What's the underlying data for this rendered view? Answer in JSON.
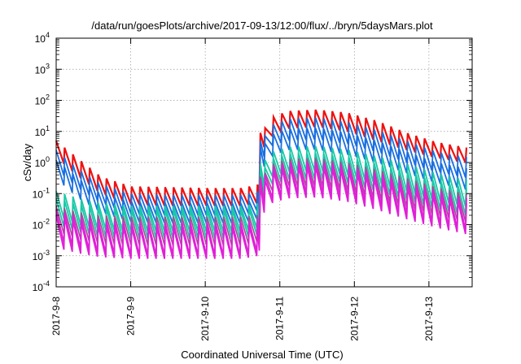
{
  "chart_data": {
    "type": "line",
    "title": "/data/run/goesPlots/archive/2017-09-13/12:00/flux/../bryn/5daysMars.plot",
    "xlabel": "Coordinated Universal Time (UTC)",
    "ylabel": "cSv/day",
    "yscale": "log",
    "ylim": [
      0.0001,
      10000
    ],
    "xlim": [
      0,
      5.58
    ],
    "y_ticks": [
      {
        "base": "10",
        "exp": "-4",
        "value": 0.0001
      },
      {
        "base": "10",
        "exp": "-3",
        "value": 0.001
      },
      {
        "base": "10",
        "exp": "-2",
        "value": 0.01
      },
      {
        "base": "10",
        "exp": "-1",
        "value": 0.1
      },
      {
        "base": "10",
        "exp": "0",
        "value": 1
      },
      {
        "base": "10",
        "exp": "1",
        "value": 10
      },
      {
        "base": "10",
        "exp": "2",
        "value": 100
      },
      {
        "base": "10",
        "exp": "3",
        "value": 1000
      },
      {
        "base": "10",
        "exp": "4",
        "value": 10000
      }
    ],
    "x_ticks": [
      {
        "label": "2017-9-8",
        "value": 0
      },
      {
        "label": "2017-9-9",
        "value": 1
      },
      {
        "label": "2017-9-10",
        "value": 2
      },
      {
        "label": "2017-9-11",
        "value": 3
      },
      {
        "label": "2017-9-12",
        "value": 4
      },
      {
        "label": "2017-9-13",
        "value": 5
      }
    ],
    "grid": true,
    "legend": "none",
    "oscillation_period_days": 0.1125,
    "event_onset_day": 2.73,
    "series": [
      {
        "color": "#ee1111",
        "width": 2.2,
        "env_peak": [
          [
            0,
            5
          ],
          [
            0.3,
            1.3
          ],
          [
            0.6,
            0.35
          ],
          [
            1.0,
            0.17
          ],
          [
            1.5,
            0.16
          ],
          [
            2.0,
            0.15
          ],
          [
            2.5,
            0.15
          ],
          [
            2.72,
            0.2
          ],
          [
            2.76,
            9
          ],
          [
            2.9,
            28
          ],
          [
            3.1,
            45
          ],
          [
            3.5,
            50
          ],
          [
            3.9,
            40
          ],
          [
            4.3,
            22
          ],
          [
            4.7,
            9
          ],
          [
            5.1,
            4.5
          ],
          [
            5.58,
            2.8
          ]
        ],
        "env_trough": [
          [
            0,
            1.5
          ],
          [
            0.3,
            0.35
          ],
          [
            0.6,
            0.1
          ],
          [
            1.0,
            0.045
          ],
          [
            1.5,
            0.04
          ],
          [
            2.0,
            0.04
          ],
          [
            2.5,
            0.04
          ],
          [
            2.72,
            0.05
          ],
          [
            2.76,
            2.5
          ],
          [
            2.9,
            7
          ],
          [
            3.1,
            12
          ],
          [
            3.5,
            14
          ],
          [
            3.9,
            10
          ],
          [
            4.3,
            5
          ],
          [
            4.7,
            2.5
          ],
          [
            5.1,
            1.4
          ],
          [
            5.58,
            0.9
          ]
        ]
      },
      {
        "color": "#1a6fe0",
        "width": 1.8,
        "env_peak": [
          [
            0,
            2.5
          ],
          [
            0.3,
            0.6
          ],
          [
            0.6,
            0.2
          ],
          [
            1.0,
            0.1
          ],
          [
            1.5,
            0.09
          ],
          [
            2.0,
            0.09
          ],
          [
            2.5,
            0.09
          ],
          [
            2.72,
            0.12
          ],
          [
            2.76,
            5
          ],
          [
            2.9,
            16
          ],
          [
            3.1,
            25
          ],
          [
            3.5,
            28
          ],
          [
            3.9,
            20
          ],
          [
            4.3,
            11
          ],
          [
            4.7,
            5
          ],
          [
            5.1,
            2.2
          ],
          [
            5.58,
            1.4
          ]
        ],
        "env_trough": [
          [
            0,
            0.6
          ],
          [
            0.3,
            0.15
          ],
          [
            0.6,
            0.05
          ],
          [
            1.0,
            0.022
          ],
          [
            1.5,
            0.02
          ],
          [
            2.0,
            0.02
          ],
          [
            2.5,
            0.02
          ],
          [
            2.72,
            0.03
          ],
          [
            2.76,
            1.2
          ],
          [
            2.9,
            3.5
          ],
          [
            3.1,
            5
          ],
          [
            3.5,
            5.5
          ],
          [
            3.9,
            4
          ],
          [
            4.3,
            2.2
          ],
          [
            4.7,
            1.0
          ],
          [
            5.1,
            0.5
          ],
          [
            5.58,
            0.3
          ]
        ]
      },
      {
        "color": "#1a6fe0",
        "width": 1.8,
        "env_peak": [
          [
            0,
            1.2
          ],
          [
            0.3,
            0.3
          ],
          [
            0.6,
            0.1
          ],
          [
            1.0,
            0.055
          ],
          [
            1.5,
            0.05
          ],
          [
            2.0,
            0.05
          ],
          [
            2.5,
            0.05
          ],
          [
            2.72,
            0.07
          ],
          [
            2.76,
            3
          ],
          [
            2.9,
            8
          ],
          [
            3.1,
            12
          ],
          [
            3.5,
            13
          ],
          [
            3.9,
            9
          ],
          [
            4.3,
            5
          ],
          [
            4.7,
            2.2
          ],
          [
            5.1,
            1.0
          ],
          [
            5.58,
            0.6
          ]
        ],
        "env_trough": [
          [
            0,
            0.3
          ],
          [
            0.3,
            0.07
          ],
          [
            0.6,
            0.025
          ],
          [
            1.0,
            0.012
          ],
          [
            1.5,
            0.011
          ],
          [
            2.0,
            0.011
          ],
          [
            2.5,
            0.011
          ],
          [
            2.72,
            0.016
          ],
          [
            2.76,
            0.6
          ],
          [
            2.9,
            1.6
          ],
          [
            3.1,
            2.5
          ],
          [
            3.5,
            2.6
          ],
          [
            3.9,
            1.8
          ],
          [
            4.3,
            1.0
          ],
          [
            4.7,
            0.45
          ],
          [
            5.1,
            0.22
          ],
          [
            5.58,
            0.12
          ]
        ]
      },
      {
        "color": "#19c8a8",
        "width": 1.8,
        "env_peak": [
          [
            0,
            0.12
          ],
          [
            0.3,
            0.07
          ],
          [
            0.6,
            0.05
          ],
          [
            1.0,
            0.04
          ],
          [
            1.5,
            0.04
          ],
          [
            2.0,
            0.04
          ],
          [
            2.5,
            0.04
          ],
          [
            2.72,
            0.05
          ],
          [
            2.76,
            0.9
          ],
          [
            2.9,
            2.2
          ],
          [
            3.1,
            3.2
          ],
          [
            3.5,
            3.4
          ],
          [
            3.9,
            2.6
          ],
          [
            4.3,
            1.6
          ],
          [
            4.7,
            0.9
          ],
          [
            5.1,
            0.45
          ],
          [
            5.58,
            0.25
          ]
        ],
        "env_trough": [
          [
            0,
            0.02
          ],
          [
            0.3,
            0.01
          ],
          [
            0.6,
            0.007
          ],
          [
            1.0,
            0.006
          ],
          [
            1.5,
            0.006
          ],
          [
            2.0,
            0.006
          ],
          [
            2.5,
            0.006
          ],
          [
            2.72,
            0.008
          ],
          [
            2.76,
            0.15
          ],
          [
            2.9,
            0.35
          ],
          [
            3.1,
            0.5
          ],
          [
            3.5,
            0.55
          ],
          [
            3.9,
            0.4
          ],
          [
            4.3,
            0.22
          ],
          [
            4.7,
            0.12
          ],
          [
            5.1,
            0.06
          ],
          [
            5.58,
            0.035
          ]
        ]
      },
      {
        "color": "#19c8a8",
        "width": 1.8,
        "env_peak": [
          [
            0,
            0.07
          ],
          [
            0.3,
            0.045
          ],
          [
            0.6,
            0.035
          ],
          [
            1.0,
            0.03
          ],
          [
            1.5,
            0.03
          ],
          [
            2.0,
            0.03
          ],
          [
            2.5,
            0.03
          ],
          [
            2.72,
            0.035
          ],
          [
            2.76,
            0.5
          ],
          [
            2.9,
            1.3
          ],
          [
            3.1,
            1.9
          ],
          [
            3.5,
            2.0
          ],
          [
            3.9,
            1.5
          ],
          [
            4.3,
            0.9
          ],
          [
            4.7,
            0.5
          ],
          [
            5.1,
            0.25
          ],
          [
            5.58,
            0.14
          ]
        ],
        "env_trough": [
          [
            0,
            0.01
          ],
          [
            0.3,
            0.006
          ],
          [
            0.6,
            0.004
          ],
          [
            1.0,
            0.0035
          ],
          [
            1.5,
            0.0035
          ],
          [
            2.0,
            0.0035
          ],
          [
            2.5,
            0.0035
          ],
          [
            2.72,
            0.005
          ],
          [
            2.76,
            0.08
          ],
          [
            2.9,
            0.2
          ],
          [
            3.1,
            0.28
          ],
          [
            3.5,
            0.3
          ],
          [
            3.9,
            0.22
          ],
          [
            4.3,
            0.12
          ],
          [
            4.7,
            0.065
          ],
          [
            5.1,
            0.033
          ],
          [
            5.58,
            0.018
          ]
        ]
      },
      {
        "color": "#a05090",
        "width": 1.6,
        "env_peak": [
          [
            0,
            0.04
          ],
          [
            0.3,
            0.025
          ],
          [
            0.6,
            0.02
          ],
          [
            1.0,
            0.018
          ],
          [
            1.5,
            0.018
          ],
          [
            2.0,
            0.018
          ],
          [
            2.5,
            0.018
          ],
          [
            2.72,
            0.02
          ],
          [
            2.76,
            0.35
          ],
          [
            2.9,
            0.9
          ],
          [
            3.1,
            1.3
          ],
          [
            3.5,
            1.4
          ],
          [
            3.9,
            1.0
          ],
          [
            4.3,
            0.6
          ],
          [
            4.7,
            0.32
          ],
          [
            5.1,
            0.16
          ],
          [
            5.58,
            0.09
          ]
        ],
        "env_trough": [
          [
            0,
            0.006
          ],
          [
            0.3,
            0.0035
          ],
          [
            0.6,
            0.0025
          ],
          [
            1.0,
            0.0022
          ],
          [
            1.5,
            0.0022
          ],
          [
            2.0,
            0.0022
          ],
          [
            2.5,
            0.0022
          ],
          [
            2.72,
            0.003
          ],
          [
            2.76,
            0.05
          ],
          [
            2.9,
            0.12
          ],
          [
            3.1,
            0.17
          ],
          [
            3.5,
            0.18
          ],
          [
            3.9,
            0.13
          ],
          [
            4.3,
            0.07
          ],
          [
            4.7,
            0.038
          ],
          [
            5.1,
            0.02
          ],
          [
            5.58,
            0.011
          ]
        ]
      },
      {
        "color": "#e020d8",
        "width": 1.8,
        "env_peak": [
          [
            0,
            0.03
          ],
          [
            0.3,
            0.018
          ],
          [
            0.6,
            0.014
          ],
          [
            1.0,
            0.012
          ],
          [
            1.5,
            0.012
          ],
          [
            2.0,
            0.012
          ],
          [
            2.5,
            0.012
          ],
          [
            2.72,
            0.015
          ],
          [
            2.76,
            0.3
          ],
          [
            2.9,
            0.7
          ],
          [
            3.1,
            1.0
          ],
          [
            3.5,
            1.1
          ],
          [
            3.9,
            0.8
          ],
          [
            4.3,
            0.45
          ],
          [
            4.7,
            0.24
          ],
          [
            5.1,
            0.12
          ],
          [
            5.58,
            0.065
          ]
        ],
        "env_trough": [
          [
            0,
            0.003
          ],
          [
            0.3,
            0.0018
          ],
          [
            0.6,
            0.0012
          ],
          [
            1.0,
            0.001
          ],
          [
            1.5,
            0.001
          ],
          [
            2.0,
            0.001
          ],
          [
            2.5,
            0.001
          ],
          [
            2.72,
            0.0014
          ],
          [
            2.76,
            0.03
          ],
          [
            2.9,
            0.07
          ],
          [
            3.1,
            0.1
          ],
          [
            3.5,
            0.11
          ],
          [
            3.9,
            0.08
          ],
          [
            4.3,
            0.045
          ],
          [
            4.7,
            0.022
          ],
          [
            5.1,
            0.011
          ],
          [
            5.58,
            0.006
          ]
        ]
      },
      {
        "color": "#e020d8",
        "width": 1.8,
        "env_peak": [
          [
            0,
            0.02
          ],
          [
            0.3,
            0.012
          ],
          [
            0.6,
            0.009
          ],
          [
            1.0,
            0.008
          ],
          [
            1.5,
            0.008
          ],
          [
            2.0,
            0.008
          ],
          [
            2.5,
            0.008
          ],
          [
            2.72,
            0.01
          ],
          [
            2.76,
            0.2
          ],
          [
            2.9,
            0.5
          ],
          [
            3.1,
            0.7
          ],
          [
            3.5,
            0.75
          ],
          [
            3.9,
            0.55
          ],
          [
            4.3,
            0.3
          ],
          [
            4.7,
            0.16
          ],
          [
            5.1,
            0.08
          ],
          [
            5.58,
            0.045
          ]
        ],
        "env_trough": [
          [
            0,
            0.0018
          ],
          [
            0.3,
            0.0012
          ],
          [
            0.6,
            0.0009
          ],
          [
            1.0,
            0.0008
          ],
          [
            1.5,
            0.0008
          ],
          [
            2.0,
            0.0008
          ],
          [
            2.5,
            0.0008
          ],
          [
            2.72,
            0.001
          ],
          [
            2.76,
            0.02
          ],
          [
            2.9,
            0.05
          ],
          [
            3.1,
            0.07
          ],
          [
            3.5,
            0.075
          ],
          [
            3.9,
            0.055
          ],
          [
            4.3,
            0.03
          ],
          [
            4.7,
            0.015
          ],
          [
            5.1,
            0.008
          ],
          [
            5.58,
            0.0045
          ]
        ]
      }
    ]
  }
}
